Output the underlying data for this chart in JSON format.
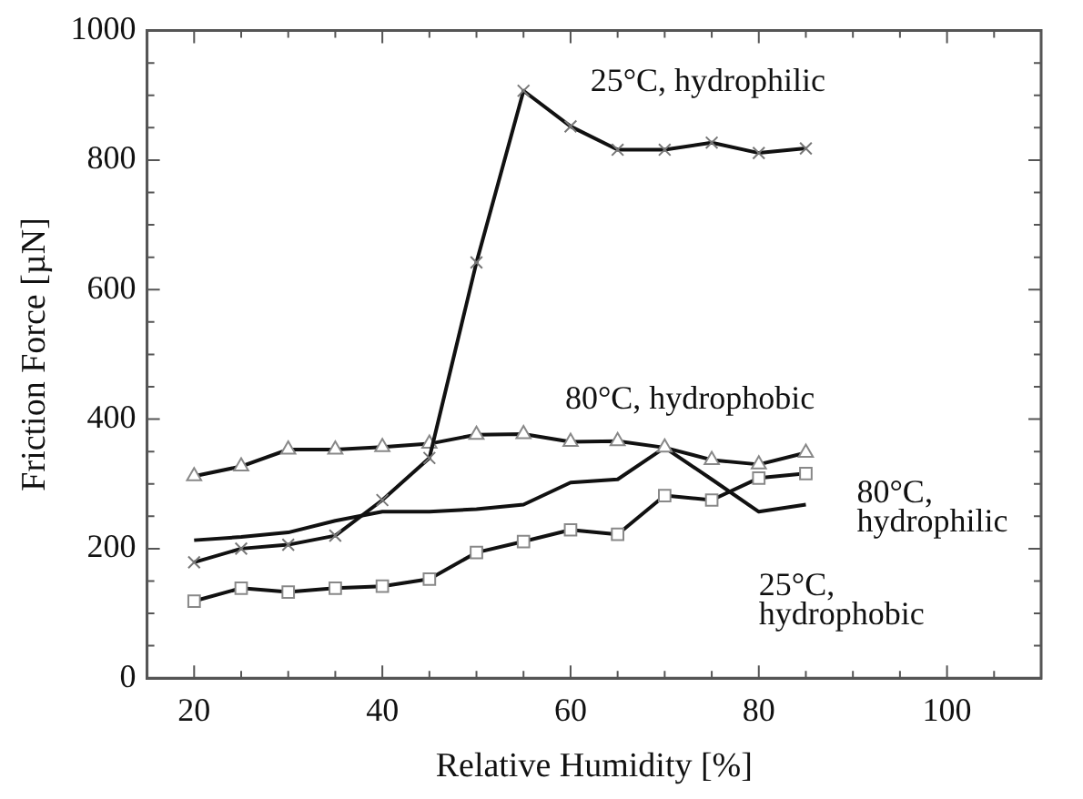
{
  "chart_data": {
    "type": "line",
    "xlabel": "Relative Humidity [%]",
    "ylabel": "Friction Force [µN]",
    "x": [
      20,
      25,
      30,
      35,
      40,
      45,
      50,
      55,
      60,
      65,
      70,
      75,
      80,
      85
    ],
    "series": [
      {
        "name": "25°C, hydrophilic",
        "color": "#111111",
        "marker": "cross",
        "values": [
          179,
          200,
          206,
          220,
          275,
          340,
          642,
          907,
          852,
          816,
          816,
          827,
          811,
          818
        ]
      },
      {
        "name": "80°C, hydrophobic",
        "color": "#111111",
        "marker": "triangle",
        "values": [
          312,
          327,
          353,
          353,
          357,
          362,
          376,
          377,
          365,
          366,
          356,
          337,
          330,
          348
        ]
      },
      {
        "name": "80°C, hydrophilic",
        "color": "#111111",
        "marker": "square",
        "values": [
          119,
          139,
          133,
          139,
          142,
          153,
          194,
          211,
          229,
          222,
          282,
          275,
          309,
          316
        ]
      },
      {
        "name": "25°C, hydrophobic",
        "color": "#111111",
        "marker": "none",
        "values": [
          213,
          218,
          225,
          243,
          257,
          257,
          261,
          268,
          302,
          307,
          356,
          307,
          257,
          268
        ]
      }
    ],
    "xlim": [
      15,
      110
    ],
    "xticks": [
      {
        "value": 15,
        "label": null
      },
      20,
      {
        "value": 25,
        "label": null
      },
      {
        "value": 30,
        "label": null
      },
      {
        "value": 35,
        "label": null
      },
      40,
      {
        "value": 45,
        "label": null
      },
      {
        "value": 50,
        "label": null
      },
      {
        "value": 55,
        "label": null
      },
      60,
      {
        "value": 65,
        "label": null
      },
      {
        "value": 70,
        "label": null
      },
      {
        "value": 75,
        "label": null
      },
      80,
      {
        "value": 85,
        "label": null
      },
      {
        "value": 90,
        "label": null
      },
      {
        "value": 95,
        "label": null
      },
      100,
      {
        "value": 105,
        "label": null
      },
      {
        "value": 110,
        "label": null
      }
    ],
    "ylim": [
      0,
      1000
    ],
    "yticks": [
      0,
      {
        "value": 50,
        "label": null
      },
      {
        "value": 100,
        "label": null
      },
      {
        "value": 150,
        "label": null
      },
      200,
      {
        "value": 250,
        "label": null
      },
      {
        "value": 300,
        "label": null
      },
      {
        "value": 350,
        "label": null
      },
      400,
      {
        "value": 450,
        "label": null
      },
      {
        "value": 500,
        "label": null
      },
      {
        "value": 550,
        "label": null
      },
      600,
      {
        "value": 650,
        "label": null
      },
      {
        "value": 700,
        "label": null
      },
      {
        "value": 750,
        "label": null
      },
      800,
      {
        "value": 850,
        "label": null
      },
      {
        "value": 900,
        "label": null
      },
      {
        "value": 950,
        "label": null
      },
      1000
    ],
    "grid": false,
    "legend": false
  }
}
